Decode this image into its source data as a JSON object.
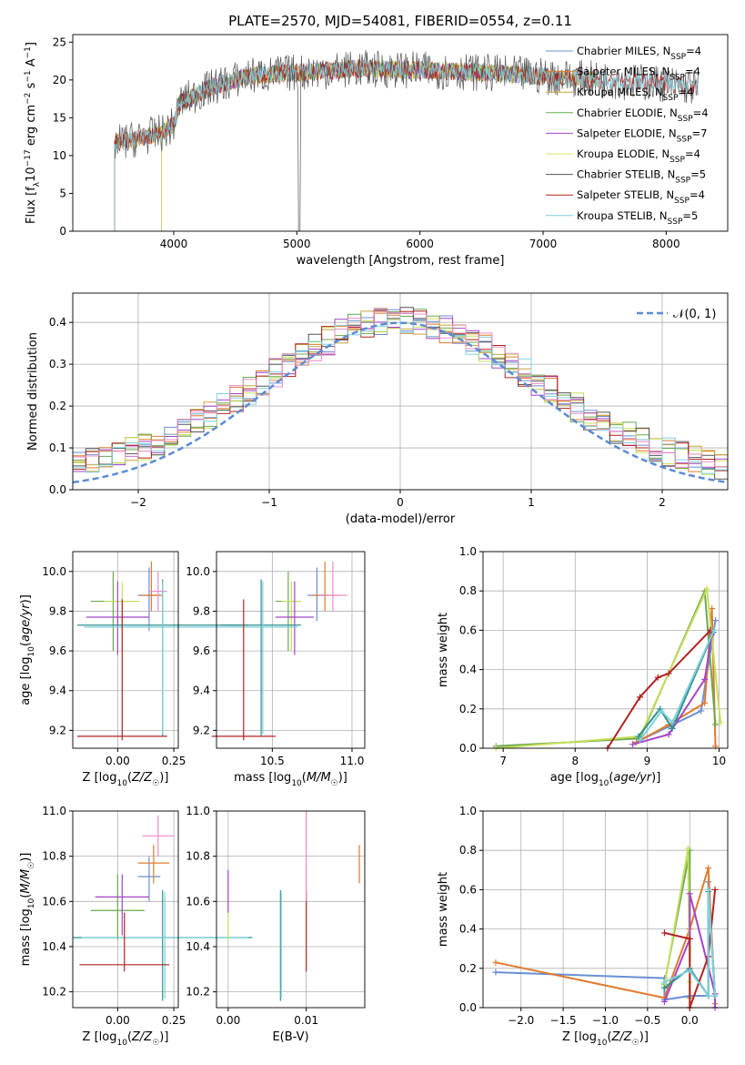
{
  "title": "PLATE=2570, MJD=54081, FIBERID=0554, z=0.11",
  "chart_data": [
    {
      "id": "spectrum",
      "type": "line",
      "xlabel": "wavelength [Angstrom, rest frame]",
      "ylabel": "Flux [f_λ10^{-17} erg cm^{-2} s^{-1} A^{-1}]",
      "xlim": [
        3180,
        8500
      ],
      "ylim": [
        0,
        26
      ],
      "xticks": [
        4000,
        5000,
        6000,
        7000,
        8000
      ],
      "yticks": [
        0,
        5,
        10,
        15,
        20,
        25
      ],
      "series": [
        {
          "name": "Chabrier MILES, N_SSP=4",
          "color": "#6a8fd4",
          "start": 3520,
          "end": 7440
        },
        {
          "name": "Salpeter MILES, N_SSP=4",
          "color": "#e07a2e",
          "start": 3520,
          "end": 7440
        },
        {
          "name": "Kroupa MILES, N_SSP=4",
          "color": "#c9a23a",
          "start": 3520,
          "end": 7440
        },
        {
          "name": "Chabrier ELODIE, N_SSP=4",
          "color": "#6aa84f",
          "start": 3900,
          "end": 6800
        },
        {
          "name": "Salpeter ELODIE, N_SSP=7",
          "color": "#a545c8",
          "start": 3900,
          "end": 6800
        },
        {
          "name": "Kroupa ELODIE, N_SSP=4",
          "color": "#dfe06a",
          "start": 3900,
          "end": 6800
        },
        {
          "name": "Chabrier STELIB, N_SSP=5",
          "color": "#555555",
          "start": 3520,
          "end": 8260
        },
        {
          "name": "Salpeter STELIB, N_SSP=4",
          "color": "#b22222",
          "start": 3520,
          "end": 8260
        },
        {
          "name": "Kroupa STELIB, N_SSP=5",
          "color": "#7fd0dc",
          "start": 3520,
          "end": 8260
        }
      ],
      "data_envelope": [
        [
          3500,
          11.5
        ],
        [
          3900,
          13
        ],
        [
          4000,
          14
        ],
        [
          4050,
          17
        ],
        [
          4300,
          19
        ],
        [
          4600,
          20.5
        ],
        [
          5000,
          21
        ],
        [
          5500,
          21.5
        ],
        [
          6000,
          21.3
        ],
        [
          6500,
          21
        ],
        [
          7000,
          20.5
        ],
        [
          7500,
          20
        ],
        [
          8000,
          19.5
        ],
        [
          8260,
          19
        ]
      ]
    },
    {
      "id": "residuals",
      "type": "histogram",
      "xlabel": "(data-model)/error",
      "ylabel": "Normed distribution",
      "xlim": [
        -2.5,
        2.5
      ],
      "ylim": [
        0,
        0.47
      ],
      "xticks": [
        -2,
        -1,
        0,
        1,
        2
      ],
      "xticklabels": [
        "−2",
        "−1",
        "0",
        "1",
        "2"
      ],
      "yticks": [
        0.0,
        0.1,
        0.2,
        0.3,
        0.4
      ],
      "legend": "𝒩(0, 1)",
      "normal_curve_color": "#5b8bd6"
    },
    {
      "id": "age-vs-Z",
      "type": "scatter",
      "xlabel": "Z [log10(Z/Z☉)]",
      "ylabel": "age [log10(age/yr)]",
      "xlim": [
        -0.2,
        0.27
      ],
      "ylim": [
        9.11,
        10.1
      ],
      "xticks": [
        0.0,
        0.25
      ],
      "xticklabels": [
        "0.00",
        "0.25"
      ],
      "yticks": [
        9.2,
        9.4,
        9.6,
        9.8,
        10.0
      ],
      "points": [
        {
          "x": 0.14,
          "y": 9.88,
          "xerr": 0.05,
          "ylo": 9.7,
          "yhi": 10.02,
          "color": "#6a8fd4"
        },
        {
          "x": 0.15,
          "y": 9.88,
          "xerr": 0.05,
          "ylo": 9.8,
          "yhi": 10.05,
          "color": "#e07a2e"
        },
        {
          "x": 0.18,
          "y": 9.9,
          "xerr": 0.04,
          "ylo": 9.8,
          "yhi": 10.0,
          "color": "#e88cc8"
        },
        {
          "x": -0.02,
          "y": 9.85,
          "xerr": 0.1,
          "ylo": 9.6,
          "yhi": 10.0,
          "color": "#6aa84f"
        },
        {
          "x": 0.02,
          "y": 9.85,
          "xerr": 0.08,
          "ylo": 9.6,
          "yhi": 9.95,
          "color": "#c6e05c"
        },
        {
          "x": 0.0,
          "y": 9.77,
          "xerr": 0.14,
          "ylo": 9.58,
          "yhi": 9.95,
          "color": "#a545c8"
        },
        {
          "x": 0.2,
          "y": 9.73,
          "xerr": 0.38,
          "ylo": 9.17,
          "yhi": 9.96,
          "color": "#2f8f8f"
        },
        {
          "x": 0.2,
          "y": 9.72,
          "xerr": 0.35,
          "ylo": 9.18,
          "yhi": 9.95,
          "color": "#7fd0dc"
        },
        {
          "x": 0.02,
          "y": 9.17,
          "xerr": 0.2,
          "ylo": 9.15,
          "yhi": 9.86,
          "color": "#b22222"
        }
      ]
    },
    {
      "id": "age-vs-mass",
      "type": "scatter",
      "xlabel": "mass [log10(M/M☉)]",
      "ylabel": "",
      "xlim": [
        10.15,
        11.08
      ],
      "ylim": [
        9.11,
        10.1
      ],
      "xticks": [
        10.5,
        11.0
      ],
      "xticklabels": [
        "10.5",
        "11.0"
      ],
      "yticks": [
        9.2,
        9.4,
        9.6,
        9.8,
        10.0
      ],
      "points": [
        {
          "x": 10.78,
          "y": 9.88,
          "xerr": 0.06,
          "ylo": 9.75,
          "yhi": 10.02,
          "color": "#6a8fd4"
        },
        {
          "x": 10.83,
          "y": 9.88,
          "xerr": 0.08,
          "ylo": 9.8,
          "yhi": 10.05,
          "color": "#e07a2e"
        },
        {
          "x": 10.88,
          "y": 9.88,
          "xerr": 0.09,
          "ylo": 9.8,
          "yhi": 10.05,
          "color": "#e88cc8"
        },
        {
          "x": 10.6,
          "y": 9.85,
          "xerr": 0.08,
          "ylo": 9.6,
          "yhi": 10.0,
          "color": "#6aa84f"
        },
        {
          "x": 10.62,
          "y": 9.85,
          "xerr": 0.06,
          "ylo": 9.6,
          "yhi": 9.95,
          "color": "#c6e05c"
        },
        {
          "x": 10.64,
          "y": 9.77,
          "xerr": 0.12,
          "ylo": 9.58,
          "yhi": 9.95,
          "color": "#a545c8"
        },
        {
          "x": 10.43,
          "y": 9.73,
          "xerr": 0.25,
          "ylo": 9.17,
          "yhi": 9.96,
          "color": "#2f8f8f"
        },
        {
          "x": 10.44,
          "y": 9.72,
          "xerr": 0.22,
          "ylo": 9.18,
          "yhi": 9.95,
          "color": "#7fd0dc"
        },
        {
          "x": 10.32,
          "y": 9.17,
          "xerr": 0.2,
          "ylo": 9.15,
          "yhi": 9.86,
          "color": "#b22222"
        }
      ]
    },
    {
      "id": "mass-weight-vs-age",
      "type": "line",
      "xlabel": "age [log10(age/yr)]",
      "ylabel": "mass weight",
      "xlim": [
        6.72,
        10.12
      ],
      "ylim": [
        0,
        1.0
      ],
      "xticks": [
        7,
        8,
        9,
        10
      ],
      "yticks": [
        0.0,
        0.2,
        0.4,
        0.6,
        0.8,
        1.0
      ],
      "series": [
        {
          "color": "#6a8fd4",
          "x": [
            8.9,
            9.3,
            9.75,
            9.95
          ],
          "y": [
            0.04,
            0.11,
            0.19,
            0.65
          ]
        },
        {
          "color": "#e07a2e",
          "x": [
            8.85,
            9.3,
            9.8,
            9.9,
            9.95
          ],
          "y": [
            0.03,
            0.12,
            0.23,
            0.71,
            0.01
          ]
        },
        {
          "color": "#6aa84f",
          "x": [
            6.9,
            8.9,
            9.8,
            9.95
          ],
          "y": [
            0.01,
            0.05,
            0.8,
            0.12
          ]
        },
        {
          "color": "#c6e05c",
          "x": [
            6.9,
            8.9,
            9.83,
            10.02
          ],
          "y": [
            0.0,
            0.06,
            0.81,
            0.13
          ]
        },
        {
          "color": "#a545c8",
          "x": [
            8.8,
            9.3,
            9.8,
            9.9
          ],
          "y": [
            0.02,
            0.07,
            0.35,
            0.58
          ]
        },
        {
          "color": "#2f8f8f",
          "x": [
            8.88,
            9.18,
            9.35,
            9.92
          ],
          "y": [
            0.06,
            0.2,
            0.1,
            0.59
          ]
        },
        {
          "color": "#b22222",
          "x": [
            8.45,
            8.9,
            9.15,
            9.3,
            9.88
          ],
          "y": [
            0.0,
            0.26,
            0.36,
            0.38,
            0.6
          ]
        },
        {
          "color": "#7fd0dc",
          "x": [
            8.9,
            9.2,
            9.35,
            9.93
          ],
          "y": [
            0.04,
            0.19,
            0.13,
            0.6
          ]
        }
      ]
    },
    {
      "id": "mass-vs-Z",
      "type": "scatter",
      "xlabel": "Z [log10(Z/Z☉)]",
      "ylabel": "mass [log10(M/M☉)]",
      "xlim": [
        -0.2,
        0.27
      ],
      "ylim": [
        10.13,
        11.0
      ],
      "xticks": [
        0.0,
        0.25
      ],
      "xticklabels": [
        "0.00",
        "0.25"
      ],
      "yticks": [
        10.2,
        10.4,
        10.6,
        10.8,
        11.0
      ],
      "points": [
        {
          "x": 0.14,
          "y": 10.71,
          "xerr": 0.05,
          "ylo": 10.6,
          "yhi": 10.8,
          "color": "#6a8fd4"
        },
        {
          "x": 0.16,
          "y": 10.77,
          "xerr": 0.07,
          "ylo": 10.68,
          "yhi": 10.85,
          "color": "#e07a2e"
        },
        {
          "x": 0.18,
          "y": 10.89,
          "xerr": 0.07,
          "ylo": 10.8,
          "yhi": 10.98,
          "color": "#e88cc8"
        },
        {
          "x": 0.0,
          "y": 10.56,
          "xerr": 0.12,
          "ylo": 10.43,
          "yhi": 10.72,
          "color": "#6aa84f"
        },
        {
          "x": 0.02,
          "y": 10.62,
          "xerr": 0.12,
          "ylo": 10.45,
          "yhi": 10.72,
          "color": "#a545c8"
        },
        {
          "x": 0.2,
          "y": 10.44,
          "xerr": 0.4,
          "ylo": 10.16,
          "yhi": 10.65,
          "color": "#2f8f8f"
        },
        {
          "x": 0.21,
          "y": 10.44,
          "xerr": 0.37,
          "ylo": 10.17,
          "yhi": 10.64,
          "color": "#7fd0dc"
        },
        {
          "x": 0.03,
          "y": 10.32,
          "xerr": 0.2,
          "ylo": 10.29,
          "yhi": 10.55,
          "color": "#b22222"
        }
      ]
    },
    {
      "id": "mass-vs-ebv",
      "type": "scatter",
      "xlabel": "E(B-V)",
      "ylabel": "",
      "xlim": [
        -0.0015,
        0.0175
      ],
      "ylim": [
        10.13,
        11.0
      ],
      "xticks": [
        0.0,
        0.01
      ],
      "xticklabels": [
        "0.00",
        "0.01"
      ],
      "yticks": [
        10.2,
        10.4,
        10.6,
        10.8,
        11.0
      ],
      "points": [
        {
          "x": 0.0,
          "y": 10.56,
          "ylo": 10.43,
          "yhi": 10.72,
          "color": "#c6e05c"
        },
        {
          "x": 0.0,
          "y": 10.62,
          "ylo": 10.55,
          "yhi": 10.74,
          "color": "#a545c8"
        },
        {
          "x": 0.0067,
          "y": 10.44,
          "ylo": 10.16,
          "yhi": 10.65,
          "color": "#2f8f8f"
        },
        {
          "x": 0.0068,
          "y": 10.44,
          "ylo": 10.17,
          "yhi": 10.64,
          "color": "#7fd0dc"
        },
        {
          "x": 0.01,
          "y": 10.32,
          "ylo": 10.29,
          "yhi": 10.65,
          "color": "#b22222"
        },
        {
          "x": 0.01,
          "y": 10.89,
          "ylo": 10.6,
          "yhi": 11.0,
          "color": "#e88cc8"
        },
        {
          "x": 0.0168,
          "y": 10.77,
          "ylo": 10.68,
          "yhi": 10.85,
          "color": "#e07a2e"
        }
      ]
    },
    {
      "id": "mass-weight-vs-Z",
      "type": "line",
      "xlabel": "Z [log10(Z/Z☉)]",
      "ylabel": "mass weight",
      "xlim": [
        -2.45,
        0.45
      ],
      "ylim": [
        0,
        1.0
      ],
      "xticks": [
        -2.0,
        -1.5,
        -1.0,
        -0.5,
        0.0
      ],
      "xticklabels": [
        "−2.0",
        "−1.5",
        "−1.0",
        "−0.5",
        "0.0"
      ],
      "yticks": [
        0.0,
        0.2,
        0.4,
        0.6,
        0.8,
        1.0
      ],
      "series": [
        {
          "color": "#6a8fd4",
          "x": [
            -2.3,
            -0.3,
            -0.3,
            0.0,
            0.22,
            0.22,
            0.3
          ],
          "y": [
            0.18,
            0.15,
            0.04,
            0.06,
            0.06,
            0.64,
            0.06
          ]
        },
        {
          "color": "#e07a2e",
          "x": [
            -2.3,
            -0.3,
            0.0,
            0.22,
            0.3
          ],
          "y": [
            0.23,
            0.05,
            0.4,
            0.71,
            0.02
          ]
        },
        {
          "color": "#6aa84f",
          "x": [
            -0.3,
            0.0,
            0.0,
            0.0
          ],
          "y": [
            0.12,
            0.8,
            0.05,
            0.19
          ]
        },
        {
          "color": "#c6e05c",
          "x": [
            -0.3,
            -0.02,
            0.0,
            0.0
          ],
          "y": [
            0.11,
            0.81,
            0.13,
            0.0
          ]
        },
        {
          "color": "#a545c8",
          "x": [
            -0.3,
            0.0,
            0.0,
            0.3,
            0.3
          ],
          "y": [
            0.03,
            0.35,
            0.58,
            0.07,
            0.0
          ]
        },
        {
          "color": "#2f8f8f",
          "x": [
            -0.3,
            0.0,
            0.22,
            0.22,
            0.3
          ],
          "y": [
            0.1,
            0.2,
            0.06,
            0.59,
            0.06
          ]
        },
        {
          "color": "#b22222",
          "x": [
            -0.3,
            0.0,
            0.0,
            0.22,
            0.3
          ],
          "y": [
            0.38,
            0.35,
            0.0,
            0.26,
            0.6
          ]
        },
        {
          "color": "#7fd0dc",
          "x": [
            -0.3,
            0.0,
            0.22,
            0.22,
            0.3
          ],
          "y": [
            0.13,
            0.19,
            0.06,
            0.6,
            0.06
          ]
        }
      ]
    }
  ]
}
